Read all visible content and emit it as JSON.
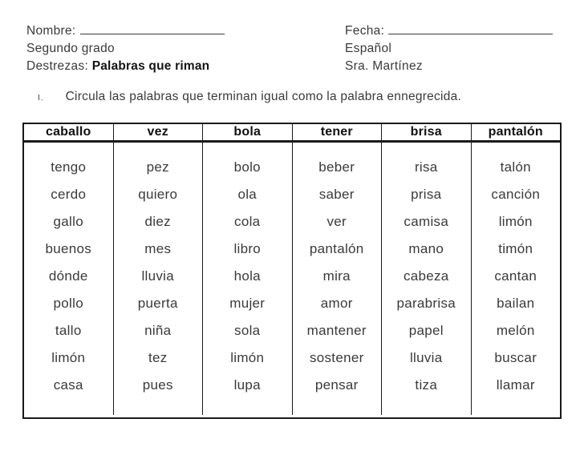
{
  "meta": {
    "left": {
      "name_label": "Nombre:",
      "grade": "Segundo grado",
      "skills_label": "Destrezas:",
      "skills_value": "Palabras que riman"
    },
    "right": {
      "date_label": "Fecha:",
      "subject": "Español",
      "teacher": "Sra. Martínez"
    }
  },
  "instruction": {
    "number": "I.",
    "text": "Circula las palabras que terminan igual como la palabra ennegrecida."
  },
  "table": {
    "headers": [
      "caballo",
      "vez",
      "bola",
      "tener",
      "brisa",
      "pantalón"
    ],
    "columns": [
      [
        "tengo",
        "cerdo",
        "gallo",
        "buenos",
        "dónde",
        "pollo",
        "tallo",
        "limón",
        "casa"
      ],
      [
        "pez",
        "quiero",
        "diez",
        "mes",
        "lluvia",
        "puerta",
        "niña",
        "tez",
        "pues"
      ],
      [
        "bolo",
        "ola",
        "cola",
        "libro",
        "hola",
        "mujer",
        "sola",
        "limón",
        "lupa"
      ],
      [
        "beber",
        "saber",
        "ver",
        "pantalón",
        "mira",
        "amor",
        "mantener",
        "sostener",
        "pensar"
      ],
      [
        "risa",
        "prisa",
        "camisa",
        "mano",
        "cabeza",
        "parabrisa",
        "papel",
        "lluvia",
        "tiza"
      ],
      [
        "talón",
        "canción",
        "limón",
        "timón",
        "cantan",
        "bailan",
        "melón",
        "buscar",
        "llamar"
      ]
    ]
  },
  "colors": {
    "text": "#3a3a3a",
    "header_text": "#111111",
    "border": "#1a1a1a",
    "background": "#ffffff"
  }
}
